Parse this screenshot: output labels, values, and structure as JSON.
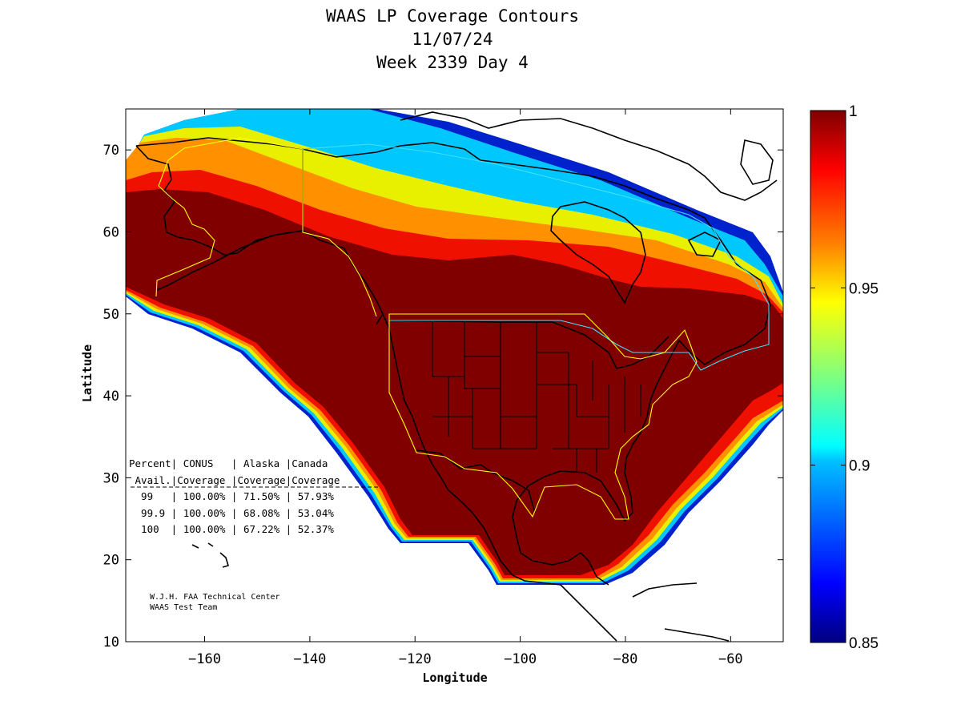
{
  "title": {
    "line1": "WAAS LP Coverage Contours",
    "line2": "11/07/24",
    "line3": "Week 2339 Day 4"
  },
  "chart_data": {
    "type": "heatmap",
    "title": "WAAS LP Coverage Contours",
    "subtitle": [
      "11/07/24",
      "Week 2339 Day 4"
    ],
    "xlabel": "Longitude",
    "ylabel": "Latitude",
    "xlim": [
      -175,
      -50
    ],
    "ylim": [
      10,
      75
    ],
    "xticks": [
      -160,
      -140,
      -120,
      -100,
      -80,
      -60
    ],
    "yticks": [
      10,
      20,
      30,
      40,
      50,
      60,
      70
    ],
    "grid": false,
    "colorbar": {
      "min": 0.85,
      "max": 1,
      "ticks": [
        0.85,
        0.9,
        0.95,
        1
      ],
      "tick_labels": [
        "0.85",
        "0.9",
        "0.95",
        "1"
      ],
      "colormap": "jet"
    },
    "table": {
      "header1": [
        "Percent",
        "CONUS",
        "Alaska",
        "Canada"
      ],
      "header2": [
        "Avail.",
        "Coverage",
        "Coverage",
        "Coverage"
      ],
      "rows": [
        {
          "percent": "99",
          "conus": "100.00%",
          "alaska": "71.50%",
          "canada": "57.93%"
        },
        {
          "percent": "99.9",
          "conus": "100.00%",
          "alaska": "68.08%",
          "canada": "53.04%"
        },
        {
          "percent": "100",
          "conus": "100.00%",
          "alaska": "67.22%",
          "canada": "52.37%"
        }
      ]
    }
  },
  "table_lines": {
    "h1": "Percent| CONUS   | Alaska |Canada",
    "h2": " Avail.|Coverage |Coverage|Coverage",
    "r1": "  99   | 100.00% | 71.50% | 57.93%",
    "r2": "  99.9 | 100.00% | 68.08% | 53.04%",
    "r3": "  100  | 100.00% | 67.22% | 52.37%"
  },
  "credits": {
    "line1": "W.J.H. FAA Technical Center",
    "line2": "WAAS Test Team"
  },
  "colors": {
    "full_coverage": "#800000",
    "land_outline": "#000000",
    "service_boundary_yellow": "#ffff00",
    "service_boundary_cyan": "#40e0ff"
  }
}
